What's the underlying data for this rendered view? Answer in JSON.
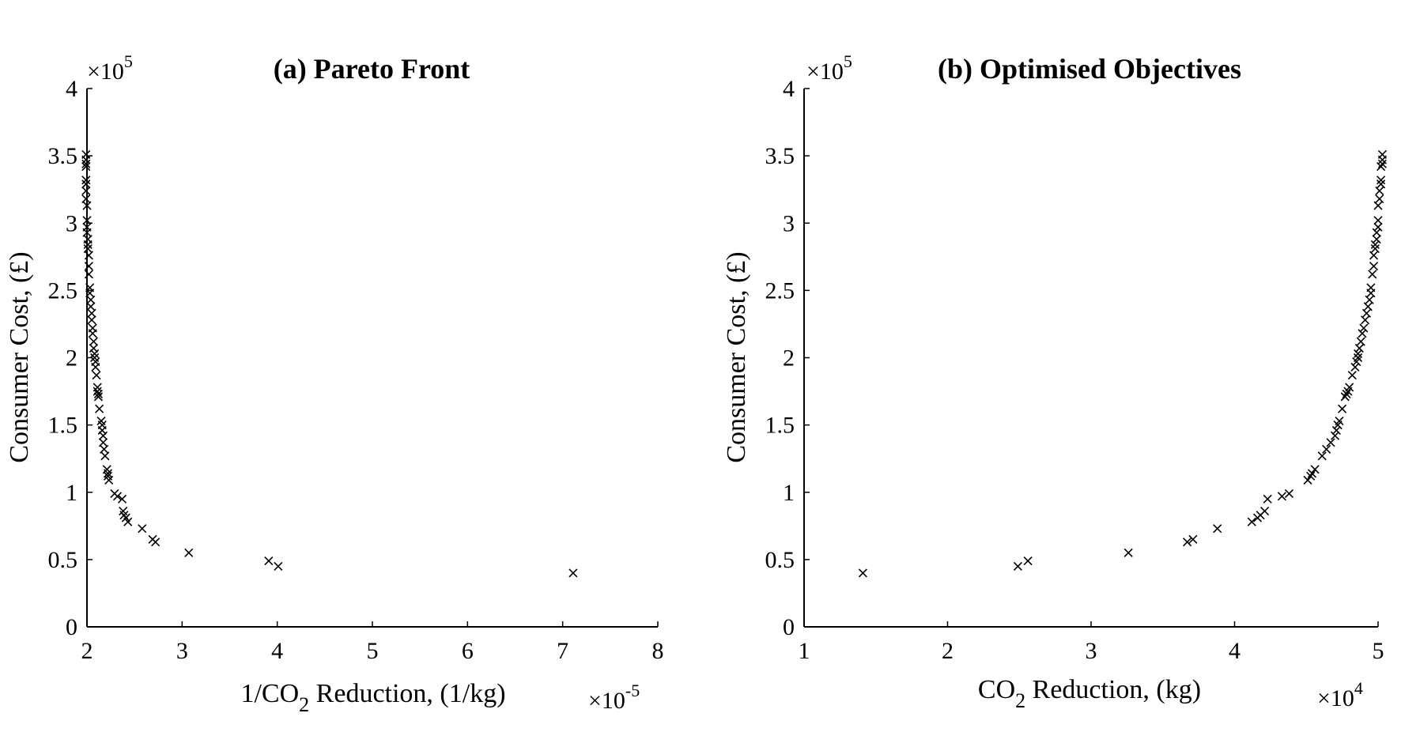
{
  "chart_data": [
    {
      "type": "scatter",
      "title": "(a) Pareto Front",
      "xlabel_parts": {
        "pre": "1/CO",
        "sub": "2",
        "post": " Reduction, (1/kg)"
      },
      "ylabel": "Consumer Cost, (£)",
      "x_multiplier": {
        "base": "×10",
        "exp": "-5"
      },
      "y_multiplier": {
        "base": "×10",
        "exp": "5"
      },
      "xlim": [
        2,
        8
      ],
      "ylim": [
        0,
        4
      ],
      "xticks": [
        "2",
        "3",
        "4",
        "5",
        "6",
        "7",
        "8"
      ],
      "yticks": [
        "0",
        "0.5",
        "1",
        "1.5",
        "2",
        "2.5",
        "3",
        "3.5",
        "4"
      ],
      "grid": false,
      "marker": "x",
      "points": [
        [
          7.11,
          0.4
        ],
        [
          4.01,
          0.45
        ],
        [
          3.91,
          0.49
        ],
        [
          3.07,
          0.55
        ],
        [
          2.72,
          0.63
        ],
        [
          2.69,
          0.65
        ],
        [
          2.58,
          0.73
        ],
        [
          2.43,
          0.78
        ],
        [
          2.41,
          0.81
        ],
        [
          2.39,
          0.83
        ],
        [
          2.38,
          0.86
        ],
        [
          2.37,
          0.95
        ],
        [
          2.32,
          0.97
        ],
        [
          2.29,
          0.99
        ],
        [
          2.23,
          1.09
        ],
        [
          2.22,
          1.12
        ],
        [
          2.22,
          1.14
        ],
        [
          2.21,
          1.17
        ],
        [
          2.19,
          1.27
        ],
        [
          2.18,
          1.32
        ],
        [
          2.17,
          1.37
        ],
        [
          2.17,
          1.42
        ],
        [
          2.16,
          1.46
        ],
        [
          2.16,
          1.5
        ],
        [
          2.15,
          1.53
        ],
        [
          2.13,
          1.62
        ],
        [
          2.12,
          1.71
        ],
        [
          2.12,
          1.73
        ],
        [
          2.11,
          1.75
        ],
        [
          2.11,
          1.78
        ],
        [
          2.1,
          1.87
        ],
        [
          2.09,
          1.93
        ],
        [
          2.09,
          1.97
        ],
        [
          2.08,
          2.0
        ],
        [
          2.08,
          2.03
        ],
        [
          2.07,
          2.07
        ],
        [
          2.07,
          2.12
        ],
        [
          2.06,
          2.18
        ],
        [
          2.06,
          2.22
        ],
        [
          2.05,
          2.28
        ],
        [
          2.05,
          2.33
        ],
        [
          2.04,
          2.38
        ],
        [
          2.04,
          2.43
        ],
        [
          2.03,
          2.48
        ],
        [
          2.03,
          2.52
        ],
        [
          2.02,
          2.62
        ],
        [
          2.02,
          2.68
        ],
        [
          2.02,
          2.76
        ],
        [
          2.01,
          2.81
        ],
        [
          2.01,
          2.84
        ],
        [
          2.01,
          2.88
        ],
        [
          2.0,
          2.93
        ],
        [
          2.0,
          2.97
        ],
        [
          2.0,
          3.02
        ],
        [
          2.0,
          3.13
        ],
        [
          1.99,
          3.18
        ],
        [
          1.99,
          3.24
        ],
        [
          1.99,
          3.29
        ],
        [
          1.99,
          3.32
        ],
        [
          1.99,
          3.42
        ],
        [
          1.99,
          3.44
        ],
        [
          1.99,
          3.47
        ],
        [
          1.99,
          3.51
        ]
      ]
    },
    {
      "type": "scatter",
      "title": "(b) Optimised Objectives",
      "xlabel_parts": {
        "pre": "CO",
        "sub": "2",
        "post": " Reduction, (kg)"
      },
      "ylabel": "Consumer Cost, (£)",
      "x_multiplier": {
        "base": "×10",
        "exp": "4"
      },
      "y_multiplier": {
        "base": "×10",
        "exp": "5"
      },
      "xlim": [
        1,
        5
      ],
      "ylim": [
        0,
        4
      ],
      "xticks": [
        "1",
        "2",
        "3",
        "4",
        "5"
      ],
      "yticks": [
        "0",
        "0.5",
        "1",
        "1.5",
        "2",
        "2.5",
        "3",
        "3.5",
        "4"
      ],
      "grid": false,
      "marker": "x",
      "points": [
        [
          1.41,
          0.4
        ],
        [
          2.49,
          0.45
        ],
        [
          2.56,
          0.49
        ],
        [
          3.26,
          0.55
        ],
        [
          3.67,
          0.63
        ],
        [
          3.71,
          0.65
        ],
        [
          3.88,
          0.73
        ],
        [
          4.12,
          0.78
        ],
        [
          4.16,
          0.81
        ],
        [
          4.18,
          0.83
        ],
        [
          4.21,
          0.86
        ],
        [
          4.23,
          0.95
        ],
        [
          4.33,
          0.97
        ],
        [
          4.38,
          0.99
        ],
        [
          4.51,
          1.09
        ],
        [
          4.53,
          1.12
        ],
        [
          4.54,
          1.14
        ],
        [
          4.56,
          1.17
        ],
        [
          4.61,
          1.27
        ],
        [
          4.64,
          1.32
        ],
        [
          4.67,
          1.37
        ],
        [
          4.7,
          1.42
        ],
        [
          4.71,
          1.46
        ],
        [
          4.72,
          1.5
        ],
        [
          4.73,
          1.53
        ],
        [
          4.75,
          1.62
        ],
        [
          4.77,
          1.71
        ],
        [
          4.78,
          1.73
        ],
        [
          4.79,
          1.75
        ],
        [
          4.8,
          1.78
        ],
        [
          4.82,
          1.87
        ],
        [
          4.84,
          1.93
        ],
        [
          4.85,
          1.97
        ],
        [
          4.86,
          2.0
        ],
        [
          4.86,
          2.03
        ],
        [
          4.87,
          2.07
        ],
        [
          4.88,
          2.12
        ],
        [
          4.89,
          2.18
        ],
        [
          4.9,
          2.22
        ],
        [
          4.91,
          2.28
        ],
        [
          4.92,
          2.33
        ],
        [
          4.93,
          2.38
        ],
        [
          4.94,
          2.43
        ],
        [
          4.95,
          2.48
        ],
        [
          4.95,
          2.52
        ],
        [
          4.96,
          2.62
        ],
        [
          4.97,
          2.68
        ],
        [
          4.97,
          2.76
        ],
        [
          4.98,
          2.81
        ],
        [
          4.98,
          2.84
        ],
        [
          4.99,
          2.88
        ],
        [
          4.99,
          2.93
        ],
        [
          5.0,
          2.97
        ],
        [
          5.0,
          3.02
        ],
        [
          5.0,
          3.13
        ],
        [
          5.01,
          3.18
        ],
        [
          5.01,
          3.24
        ],
        [
          5.02,
          3.29
        ],
        [
          5.02,
          3.32
        ],
        [
          5.02,
          3.42
        ],
        [
          5.03,
          3.44
        ],
        [
          5.03,
          3.47
        ],
        [
          5.03,
          3.51
        ]
      ]
    }
  ]
}
